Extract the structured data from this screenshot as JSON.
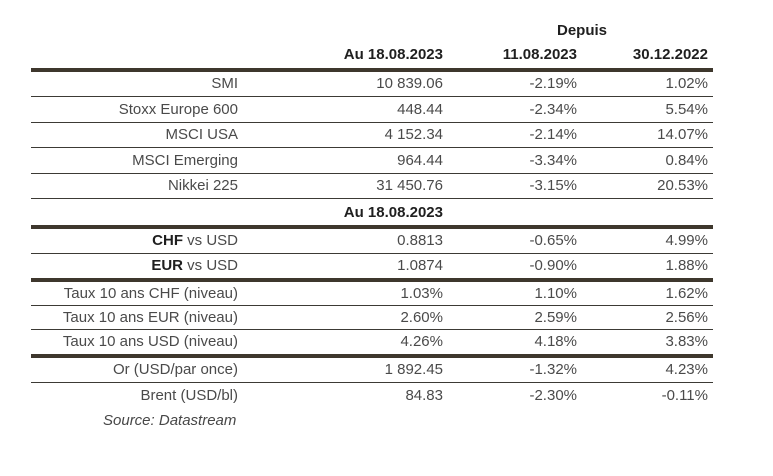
{
  "table": {
    "depuis_label": "Depuis",
    "col_headers": {
      "current": "Au 18.08.2023",
      "since_week": "11.08.2023",
      "since_year": "30.12.2022"
    },
    "section_header": "Au 18.08.2023",
    "rows": [
      {
        "label": "SMI",
        "current": "10 839.06",
        "since_week": "-2.19%",
        "since_year": "1.02%"
      },
      {
        "label": "Stoxx Europe 600",
        "current": "448.44",
        "since_week": "-2.34%",
        "since_year": "5.54%"
      },
      {
        "label": "MSCI USA",
        "current": "4 152.34",
        "since_week": "-2.14%",
        "since_year": "14.07%"
      },
      {
        "label": "MSCI Emerging",
        "current": "964.44",
        "since_week": "-3.34%",
        "since_year": "0.84%"
      },
      {
        "label": "Nikkei 225",
        "current": "31 450.76",
        "since_week": "-3.15%",
        "since_year": "20.53%"
      },
      {
        "label_bold": "CHF",
        "label_rest": " vs USD",
        "current": "0.8813",
        "since_week": "-0.65%",
        "since_year": "4.99%"
      },
      {
        "label_bold": "EUR",
        "label_rest": " vs USD",
        "current": "1.0874",
        "since_week": "-0.90%",
        "since_year": "1.88%"
      },
      {
        "label": "Taux 10 ans CHF (niveau)",
        "current": "1.03%",
        "since_week": "1.10%",
        "since_year": "1.62%"
      },
      {
        "label": "Taux 10 ans EUR (niveau)",
        "current": "2.60%",
        "since_week": "2.59%",
        "since_year": "2.56%"
      },
      {
        "label": "Taux 10 ans USD (niveau)",
        "current": "4.26%",
        "since_week": "4.18%",
        "since_year": "3.83%"
      },
      {
        "label": "Or (USD/par once)",
        "current": "1 892.45",
        "since_week": "-1.32%",
        "since_year": "4.23%"
      },
      {
        "label": "Brent (USD/bl)",
        "current": "84.83",
        "since_week": "-2.30%",
        "since_year": "-0.11%"
      }
    ],
    "source_note": "Source: Datastream"
  },
  "colors": {
    "thick_rule": "#3e372d",
    "thin_rule": "#3c3a35",
    "header_text": "#1f1f1f",
    "body_text": "#4a4a4a",
    "background": "#ffffff"
  }
}
